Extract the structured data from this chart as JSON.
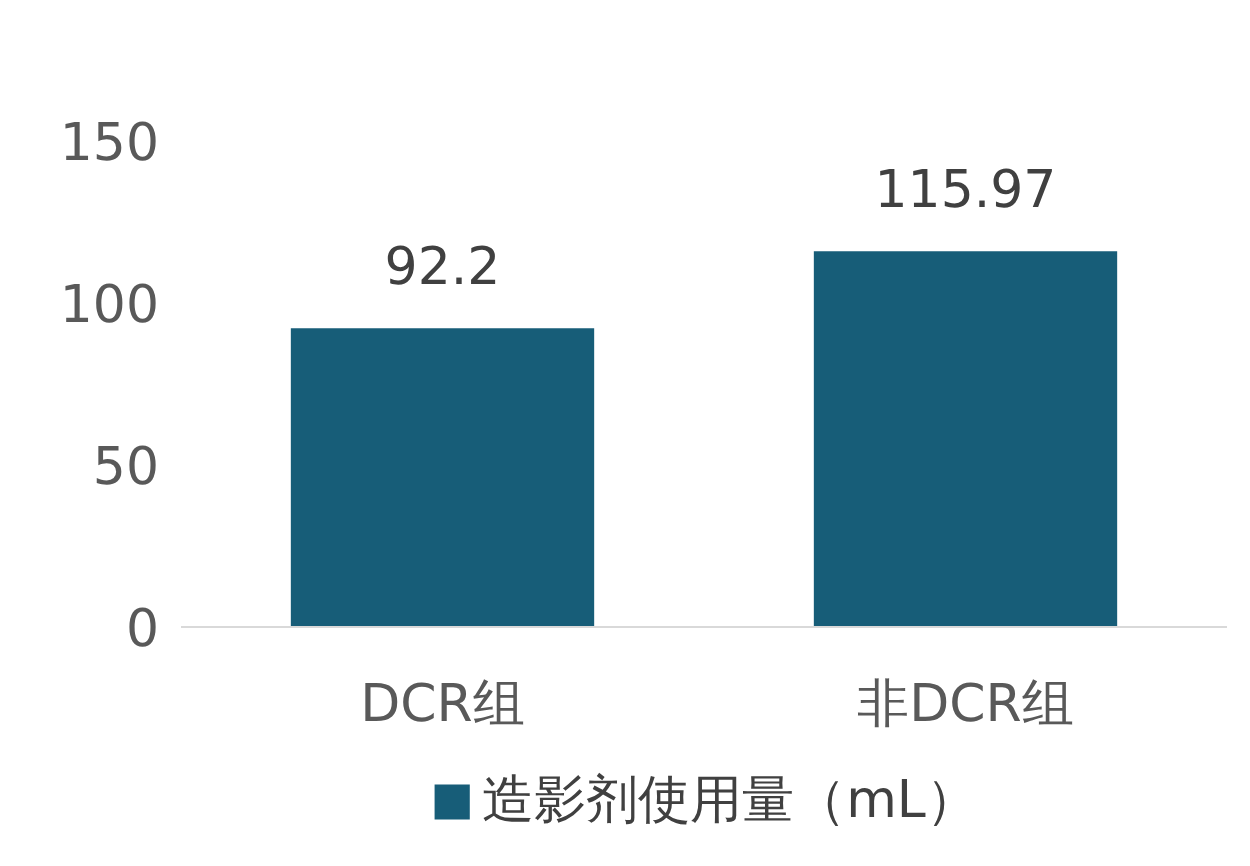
{
  "chart_data": {
    "type": "bar",
    "categories": [
      "DCR组",
      "非DCR组"
    ],
    "series": [
      {
        "name": "造影剂使用量（mL）",
        "color": "#175d78",
        "values": [
          92.2,
          115.97
        ]
      }
    ],
    "ylim": [
      0,
      150
    ],
    "yticks": [
      0,
      50,
      100,
      150
    ],
    "grid": false,
    "legend": "bottom",
    "data_labels": true
  }
}
